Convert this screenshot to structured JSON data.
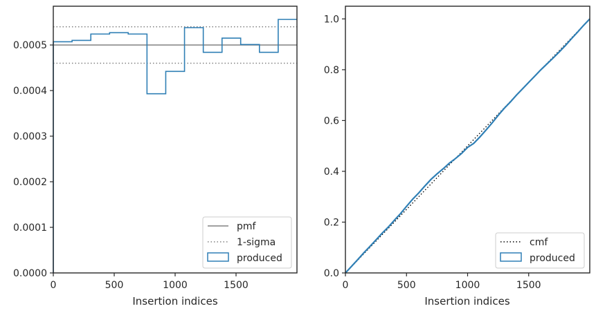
{
  "chart_data": [
    {
      "type": "line",
      "xlabel": "Insertion indices",
      "ylabel": "",
      "xlim": [
        0,
        2000
      ],
      "ylim": [
        0,
        0.000585
      ],
      "xticks": [
        0,
        500,
        1000,
        1500
      ],
      "xtick_labels": [
        "0",
        "500",
        "1000",
        "1500"
      ],
      "yticks": [
        0,
        0.0001,
        0.0002,
        0.0003,
        0.0004,
        0.0005
      ],
      "ytick_labels": [
        "0.0000",
        "0.0001",
        "0.0002",
        "0.0003",
        "0.0004",
        "0.0005"
      ],
      "grid": false,
      "legend_position": "lower-right",
      "series": [
        {
          "name": "pmf",
          "kind": "hline",
          "y": 0.0005,
          "color": "#808080",
          "style": "solid"
        },
        {
          "name": "1-sigma",
          "kind": "hlines",
          "y": [
            0.00054,
            0.00046
          ],
          "color": "#808080",
          "style": "dotted"
        },
        {
          "name": "produced",
          "kind": "step-hist",
          "color": "#2f7fb5",
          "bin_edges": [
            0,
            154,
            308,
            462,
            615,
            769,
            923,
            1077,
            1231,
            1385,
            1538,
            1692,
            1846,
            2000
          ],
          "values": [
            0.000507,
            0.00051,
            0.000524,
            0.000527,
            0.000524,
            0.000393,
            0.000442,
            0.000538,
            0.000484,
            0.000515,
            0.000501,
            0.000484,
            0.000556
          ]
        }
      ]
    },
    {
      "type": "line",
      "xlabel": "Insertion indices",
      "ylabel": "",
      "xlim": [
        0,
        2000
      ],
      "ylim": [
        0,
        1.05
      ],
      "xticks": [
        0,
        500,
        1000,
        1500
      ],
      "xtick_labels": [
        "0",
        "500",
        "1000",
        "1500"
      ],
      "yticks": [
        0,
        0.2,
        0.4,
        0.6,
        0.8,
        1.0
      ],
      "ytick_labels": [
        "0.0",
        "0.2",
        "0.4",
        "0.6",
        "0.8",
        "1.0"
      ],
      "grid": false,
      "legend_position": "lower-right",
      "series": [
        {
          "name": "cmf",
          "kind": "line",
          "x": [
            0,
            2000
          ],
          "y": [
            0,
            1
          ],
          "color": "#000000",
          "style": "dotted"
        },
        {
          "name": "produced",
          "kind": "line",
          "color": "#2f7fb5",
          "x": [
            0,
            50,
            100,
            150,
            200,
            250,
            300,
            350,
            400,
            450,
            500,
            550,
            600,
            650,
            700,
            750,
            800,
            850,
            900,
            950,
            1000,
            1050,
            1100,
            1150,
            1200,
            1250,
            1300,
            1350,
            1400,
            1450,
            1500,
            1550,
            1600,
            1650,
            1700,
            1750,
            1800,
            1850,
            1900,
            1950,
            2000
          ],
          "y": [
            0,
            0.026,
            0.052,
            0.079,
            0.104,
            0.13,
            0.156,
            0.18,
            0.207,
            0.233,
            0.262,
            0.29,
            0.315,
            0.342,
            0.368,
            0.39,
            0.41,
            0.432,
            0.45,
            0.47,
            0.494,
            0.51,
            0.535,
            0.562,
            0.59,
            0.62,
            0.648,
            0.673,
            0.7,
            0.725,
            0.75,
            0.775,
            0.8,
            0.823,
            0.846,
            0.87,
            0.895,
            0.922,
            0.948,
            0.975,
            1.0
          ]
        }
      ]
    }
  ]
}
